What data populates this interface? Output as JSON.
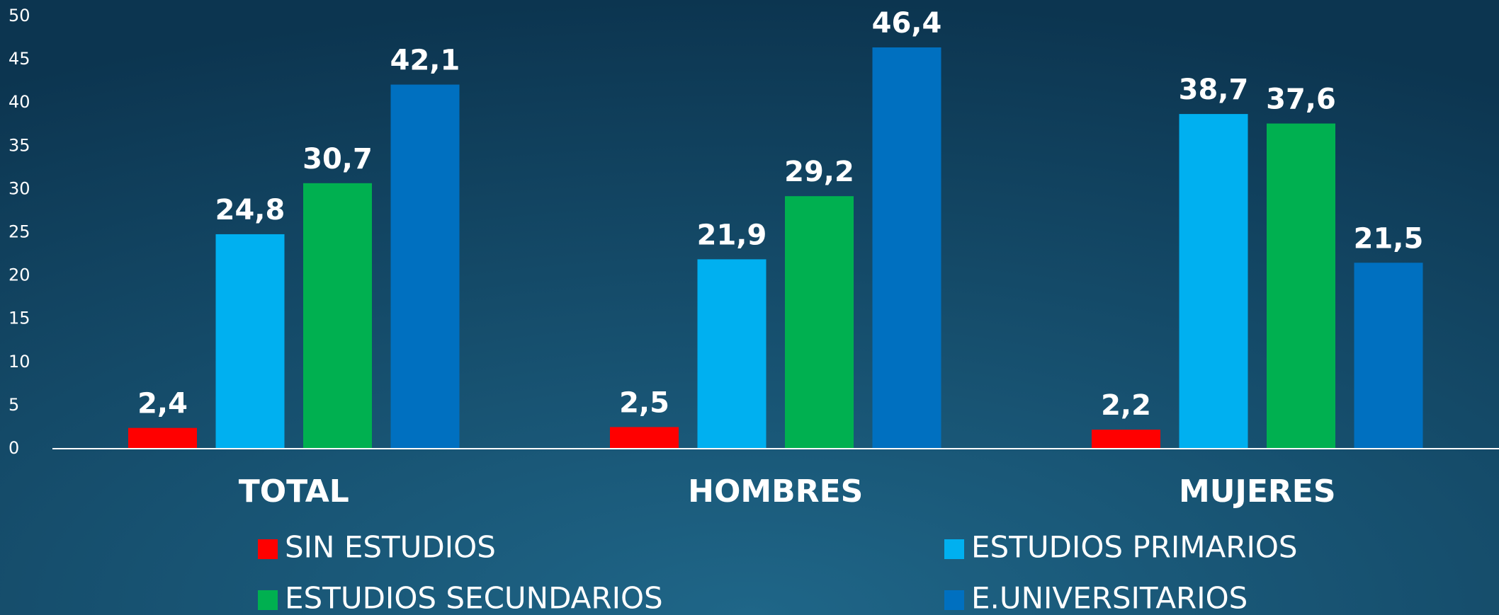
{
  "chart_data": {
    "type": "bar",
    "categories": [
      "TOTAL",
      "HOMBRES",
      "MUJERES"
    ],
    "series": [
      {
        "name": "SIN ESTUDIOS",
        "color": "#ff0000",
        "values": [
          2.4,
          2.5,
          2.2
        ],
        "value_labels": [
          "2,4",
          "2,5",
          "2,2"
        ]
      },
      {
        "name": "ESTUDIOS PRIMARIOS",
        "color": "#00b0f0",
        "values": [
          24.8,
          21.9,
          38.7
        ],
        "value_labels": [
          "24,8",
          "21,9",
          "38,7"
        ]
      },
      {
        "name": "ESTUDIOS SECUNDARIOS",
        "color": "#00b050",
        "values": [
          30.7,
          29.2,
          37.6
        ],
        "value_labels": [
          "30,7",
          "29,2",
          "37,6"
        ]
      },
      {
        "name": "E.UNIVERSITARIOS",
        "color": "#0070c0",
        "values": [
          42.1,
          46.4,
          21.5
        ],
        "value_labels": [
          "42,1",
          "46,4",
          "21,5"
        ]
      }
    ],
    "ylim": [
      0,
      50
    ],
    "yticks": [
      0,
      5,
      10,
      15,
      20,
      25,
      30,
      35,
      40,
      45,
      50
    ]
  }
}
